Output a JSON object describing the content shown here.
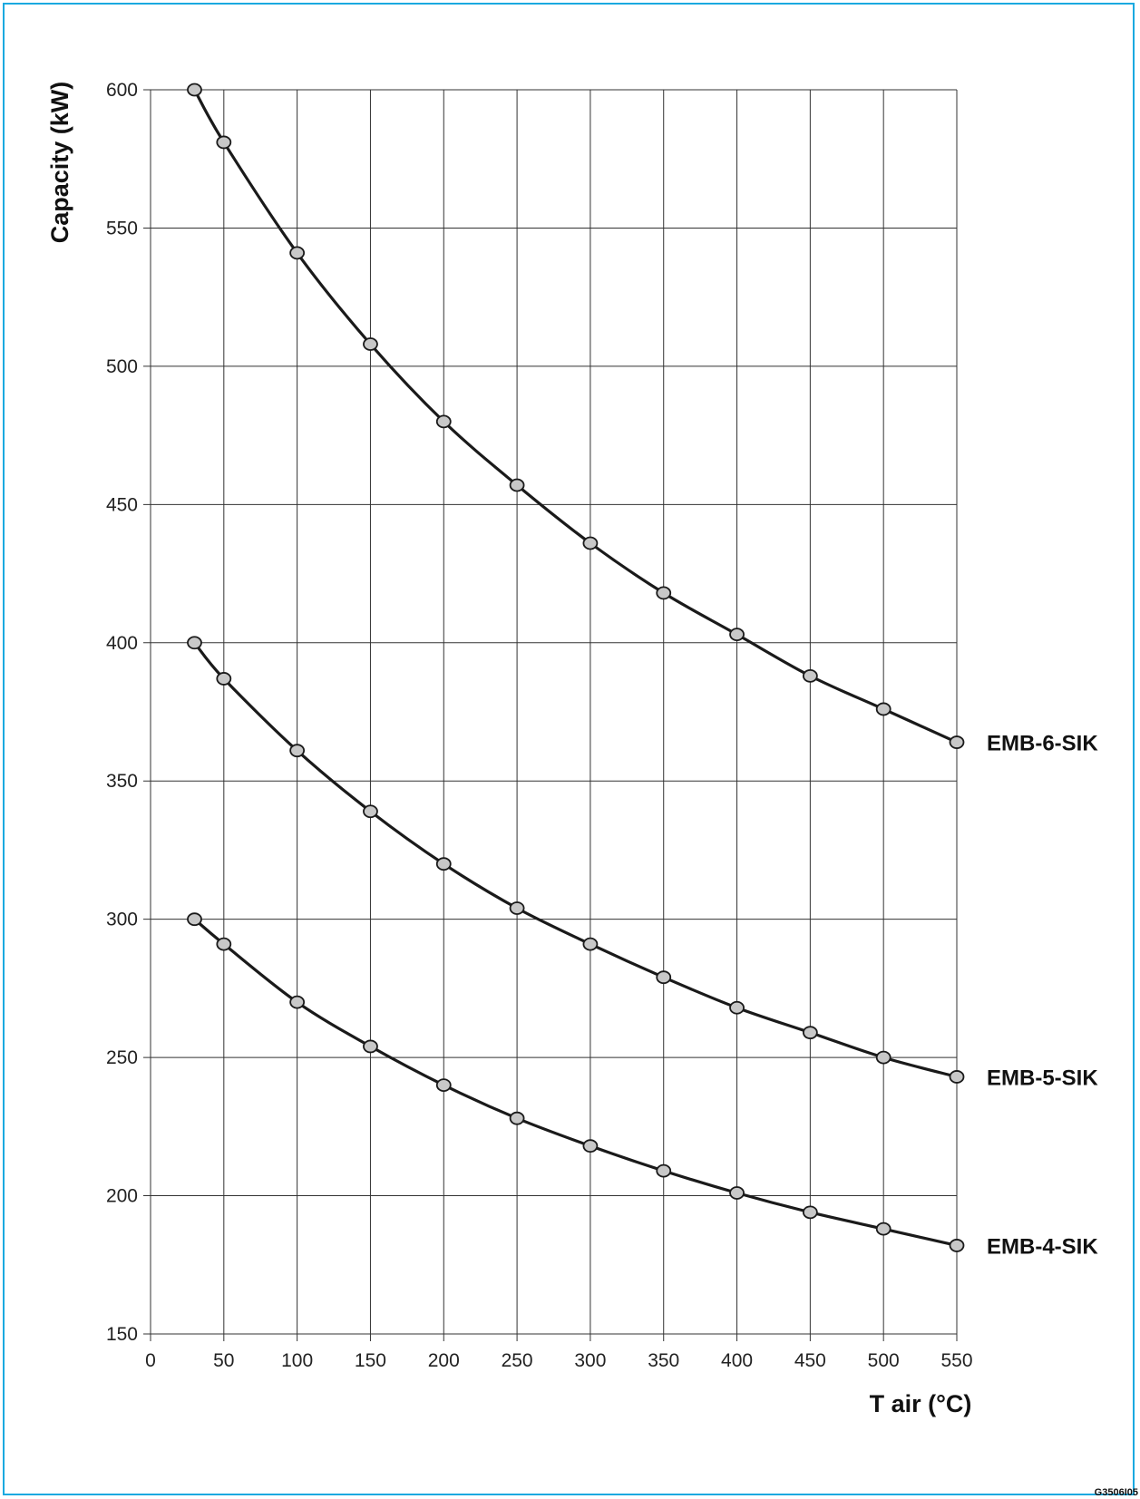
{
  "figure_code": "G3506I05",
  "chart_data": {
    "type": "line",
    "xlabel": "T air (°C)",
    "ylabel": "Capacity (kW)",
    "xlim": [
      0,
      550
    ],
    "ylim": [
      150,
      600
    ],
    "x_ticks": [
      0,
      50,
      100,
      150,
      200,
      250,
      300,
      350,
      400,
      450,
      500,
      550
    ],
    "y_ticks": [
      150,
      200,
      250,
      300,
      350,
      400,
      450,
      500,
      550,
      600
    ],
    "grid": true,
    "x": [
      30,
      50,
      100,
      150,
      200,
      250,
      300,
      350,
      400,
      450,
      500,
      550
    ],
    "series": [
      {
        "name": "EMB-6-SIK",
        "values": [
          600,
          581,
          541,
          508,
          480,
          457,
          436,
          418,
          403,
          388,
          376,
          364
        ]
      },
      {
        "name": "EMB-5-SIK",
        "values": [
          400,
          387,
          361,
          339,
          320,
          304,
          291,
          279,
          268,
          259,
          250,
          243
        ]
      },
      {
        "name": "EMB-4-SIK",
        "values": [
          300,
          291,
          270,
          254,
          240,
          228,
          218,
          209,
          201,
          194,
          188,
          182
        ]
      }
    ]
  },
  "colors": {
    "frame": "#1aa9e0",
    "line": "#1a1a1a",
    "marker_fill": "#c8c8c8"
  }
}
